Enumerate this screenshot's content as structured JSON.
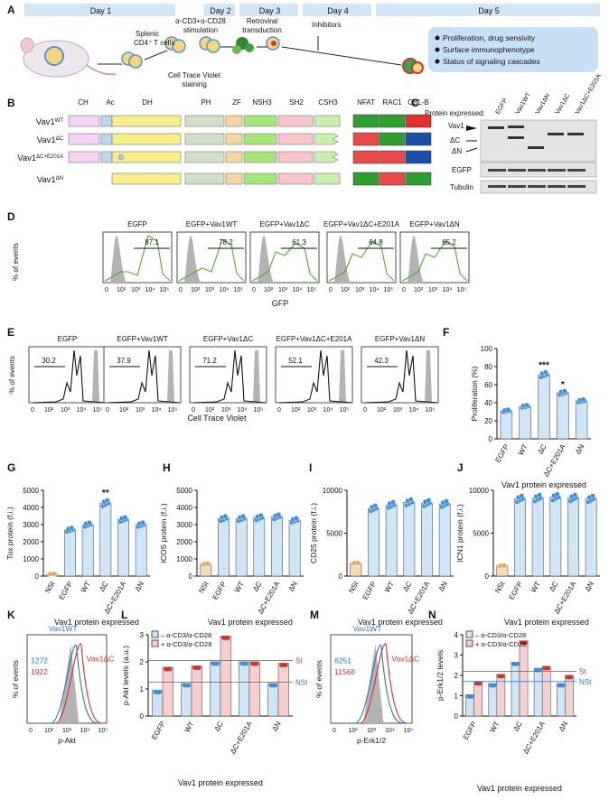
{
  "panels": {
    "A": "A",
    "B": "B",
    "C": "C",
    "D": "D",
    "E": "E",
    "F": "F",
    "G": "G",
    "H": "H",
    "I": "I",
    "J": "J",
    "K": "K",
    "L": "L",
    "M": "M",
    "N": "N"
  },
  "timeline": {
    "days": [
      "Day 1",
      "Day 2",
      "Day 3",
      "Day 4",
      "Day 5"
    ],
    "step_splenic": [
      "Splenic",
      "CD4⁺ T cells"
    ],
    "step_stim": [
      "α-CD3+α-CD28",
      "stimulation"
    ],
    "step_retro": [
      "Retroviral",
      "transduction"
    ],
    "step_inhib": "Inhibitors",
    "step_ctv": [
      "Cell Trace Violet",
      "staining"
    ],
    "outcomes": [
      "Proliferation, drug sensivity",
      "Surface immunophenotype",
      "Status of signaling cascades"
    ]
  },
  "domains": {
    "headers": [
      "CH",
      "Ac",
      "DH",
      "PH",
      "ZF",
      "NSH3",
      "SH2",
      "CSH3",
      "NFAT",
      "RAC1",
      "CBL-B"
    ],
    "constructs": [
      "Vav1WT",
      "Vav1ΔC",
      "Vav1ΔC+E201A",
      "Vav1ΔN"
    ],
    "readouts": [
      [
        "#2f9e2f",
        "#2f9e2f",
        "#e03030"
      ],
      [
        "#e84a4a",
        "#2f9e2f",
        "#1a4fa8"
      ],
      [
        "#e84a4a",
        "#e84a4a",
        "#1a4fa8"
      ],
      [
        "#2f9e2f",
        "#e84a4a",
        "#2f9e2f"
      ]
    ]
  },
  "blot": {
    "header": "Protein expressed:",
    "lanes": [
      "EGFP",
      "Vav1WT",
      "Vav1ΔN",
      "Vav1ΔC",
      "Vav1ΔC+E201A"
    ],
    "labels": [
      "Vav1",
      "ΔC",
      "ΔN",
      "EGFP",
      "Tubulin"
    ]
  },
  "gfp": {
    "titles": [
      "EGFP",
      "EGFP+Vav1WT",
      "EGFP+Vav1ΔC",
      "EGFP+Vav1ΔC+E201A",
      "EGFP+Vav1ΔN"
    ],
    "pct": [
      "87.1",
      "78.2",
      "61.3",
      "64.8",
      "65.2"
    ],
    "xlabel": "GFP",
    "ylabel": "% of events",
    "ticks": [
      "0",
      "10²",
      "10³",
      "10⁴",
      "10⁵"
    ]
  },
  "ctv": {
    "titles": [
      "EGFP",
      "EGFP+Vav1WT",
      "EGFP+Vav1ΔC",
      "EGFP+Vav1ΔC+E201A",
      "EGFP+Vav1ΔN"
    ],
    "pct": [
      "30.2",
      "37.9",
      "71.2",
      "52.1",
      "42.3"
    ],
    "xlabel": "Cell Trace Violet",
    "ylabel": "% of events",
    "ticks": [
      "0",
      "10²",
      "10³",
      "10⁴",
      "10⁵"
    ]
  },
  "chart_data": [
    {
      "panel": "F",
      "type": "bar",
      "categories": [
        "EGFP",
        "WT",
        "ΔC",
        "ΔC+E201A",
        "ΔN"
      ],
      "values": [
        31,
        36,
        71,
        51,
        42
      ],
      "stars": [
        "",
        "",
        "***",
        "*",
        ""
      ],
      "ylabel": "Proliferation (%)",
      "xlabel": "Vav1 protein expressed",
      "ylim": [
        0,
        100
      ],
      "yticks": [
        "0",
        "20",
        "40",
        "60",
        "80",
        "100"
      ]
    },
    {
      "panel": "G",
      "type": "bar",
      "categories": [
        "NSt",
        "EGFP",
        "WT",
        "ΔC",
        "ΔC+E201A",
        "ΔN"
      ],
      "values": [
        120,
        2700,
        3000,
        4250,
        3300,
        3000
      ],
      "stars": [
        "",
        "",
        "",
        "**",
        "",
        ""
      ],
      "ylabel": "Tox protein (f.i.)",
      "xlabel": "Vav1 protein expressed",
      "ylim": [
        0,
        5000
      ],
      "yticks": [
        "0",
        "1000",
        "2000",
        "3000",
        "4000",
        "5000"
      ]
    },
    {
      "panel": "H",
      "type": "bar",
      "categories": [
        "NSt",
        "EGFP",
        "WT",
        "ΔC",
        "ΔC+E201A",
        "ΔN"
      ],
      "values": [
        700,
        3350,
        3350,
        3400,
        3450,
        3250
      ],
      "stars": [
        "",
        "",
        "",
        "",
        "",
        ""
      ],
      "ylabel": "ICOS protein (f.i.)",
      "xlabel": "Vav1 protein expressed",
      "ylim": [
        0,
        5000
      ],
      "yticks": [
        "0",
        "1000",
        "2000",
        "3000",
        "4000",
        "5000"
      ]
    },
    {
      "panel": "I",
      "type": "bar",
      "categories": [
        "NSt",
        "EGFP",
        "WT",
        "ΔC",
        "ΔC+E201A",
        "ΔN"
      ],
      "values": [
        1500,
        7900,
        8300,
        8600,
        8500,
        8400
      ],
      "stars": [
        "",
        "",
        "",
        "",
        "",
        ""
      ],
      "ylabel": "CD25 protein (f.i.)",
      "xlabel": "Vav1 protein expressed",
      "ylim": [
        0,
        10000
      ],
      "yticks": [
        "0",
        "5000",
        "10000"
      ]
    },
    {
      "panel": "J",
      "type": "bar",
      "categories": [
        "NSt",
        "EGFP",
        "WT",
        "ΔC",
        "ΔC+E201A",
        "ΔN"
      ],
      "values": [
        1200,
        9000,
        9100,
        9200,
        9100,
        9000
      ],
      "stars": [
        "",
        "",
        "",
        "",
        "",
        ""
      ],
      "ylabel": "ICN1 protein (f.i.)",
      "xlabel": "Vav1 protein expressed",
      "ylim": [
        0,
        10000
      ],
      "yticks": [
        "0",
        "5000",
        "10000"
      ]
    },
    {
      "panel": "L",
      "type": "bar",
      "categories": [
        "EGFP",
        "WT",
        "ΔC",
        "ΔC+E201A",
        "ΔN"
      ],
      "series": [
        {
          "name": "– α-CD3/α-CD28",
          "values": [
            0.95,
            1.2,
            2.0,
            2.0,
            1.2
          ]
        },
        {
          "name": "+ α-CD3/α-CD28",
          "values": [
            1.8,
            1.85,
            2.95,
            2.0,
            1.95
          ]
        }
      ],
      "ylabel": "p-Akt levels (a.u.)",
      "xlabel": "Vav1 protein expressed",
      "ylim": [
        0,
        3
      ],
      "yticks": [
        "0",
        "1",
        "2",
        "3"
      ],
      "refs": {
        "St": 2.05,
        "NSt": 1.25
      }
    },
    {
      "panel": "N",
      "type": "bar",
      "categories": [
        "EGFP",
        "WT",
        "ΔC",
        "ΔC+E201A",
        "ΔN"
      ],
      "series": [
        {
          "name": "– α-CD3/α-CD28",
          "values": [
            1.05,
            1.6,
            2.65,
            2.35,
            1.6
          ]
        },
        {
          "name": "+ α-CD3/α-CD28",
          "values": [
            1.7,
            2.05,
            3.7,
            2.45,
            2.0
          ]
        }
      ],
      "ylabel": "p-Erk1/2 levels",
      "xlabel": "Vav1 protein expressed",
      "ylim": [
        0,
        4
      ],
      "yticks": [
        "0",
        "1",
        "2",
        "3",
        "4"
      ],
      "refs": {
        "St": 2.2,
        "NSt": 1.7
      }
    }
  ],
  "hist_k": {
    "wt": "Vav1WT",
    "dc": "Vav1ΔC",
    "wt_val": "1272",
    "dc_val": "1922",
    "xlabel": "p-Akt",
    "ylabel": "% of events",
    "ticks": [
      "0",
      "10²",
      "10³",
      "10⁴",
      "10⁵"
    ]
  },
  "hist_m": {
    "wt": "Vav1WT",
    "dc": "Vav1ΔC",
    "wt_val": "6251",
    "dc_val": "11568",
    "xlabel": "p-Erk1/2",
    "ylabel": "% of events",
    "ticks": [
      "0",
      "10²",
      "10³",
      "10⁴",
      "10⁵"
    ]
  },
  "colors": {
    "bar": "#cfe6f8",
    "dot": "#3d8fd8",
    "nst": "#f6dbb8",
    "red": "#d63030",
    "blue": "#2a74c8",
    "green": "#4cae2c"
  }
}
